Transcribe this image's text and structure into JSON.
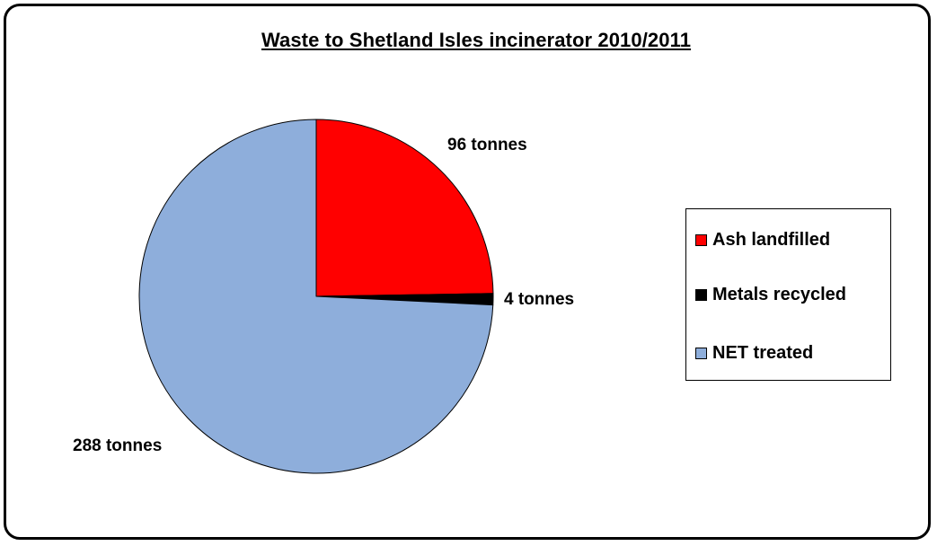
{
  "chart_data": {
    "type": "pie",
    "title": "Waste to Shetland Isles incinerator 2010/2011",
    "slices": [
      {
        "name": "Ash landfilled",
        "value": 96,
        "label": "96 tonnes",
        "color": "#FF0000"
      },
      {
        "name": "Metals recycled",
        "value": 4,
        "label": "4 tonnes",
        "color": "#000000"
      },
      {
        "name": "NET treated",
        "value": 288,
        "label": "288 tonnes",
        "color": "#8EAEDB"
      }
    ],
    "legend_position": "right"
  }
}
